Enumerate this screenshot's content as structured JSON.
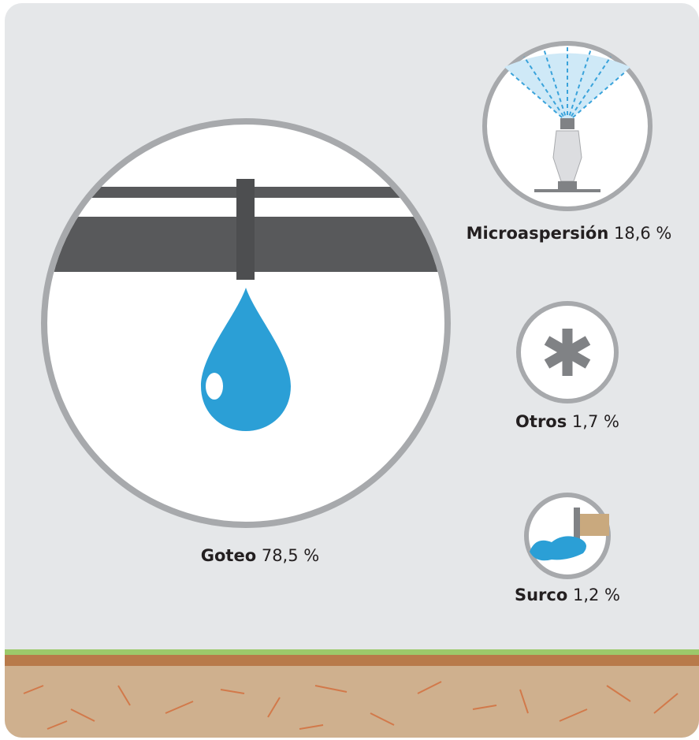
{
  "items": [
    {
      "name": "Goteo",
      "value": "78,5 %"
    },
    {
      "name": "Microaspersión",
      "value": "18,6 %"
    },
    {
      "name": "Otros",
      "value": "1,7 %"
    },
    {
      "name": "Surco",
      "value": "1,2 %"
    }
  ]
}
